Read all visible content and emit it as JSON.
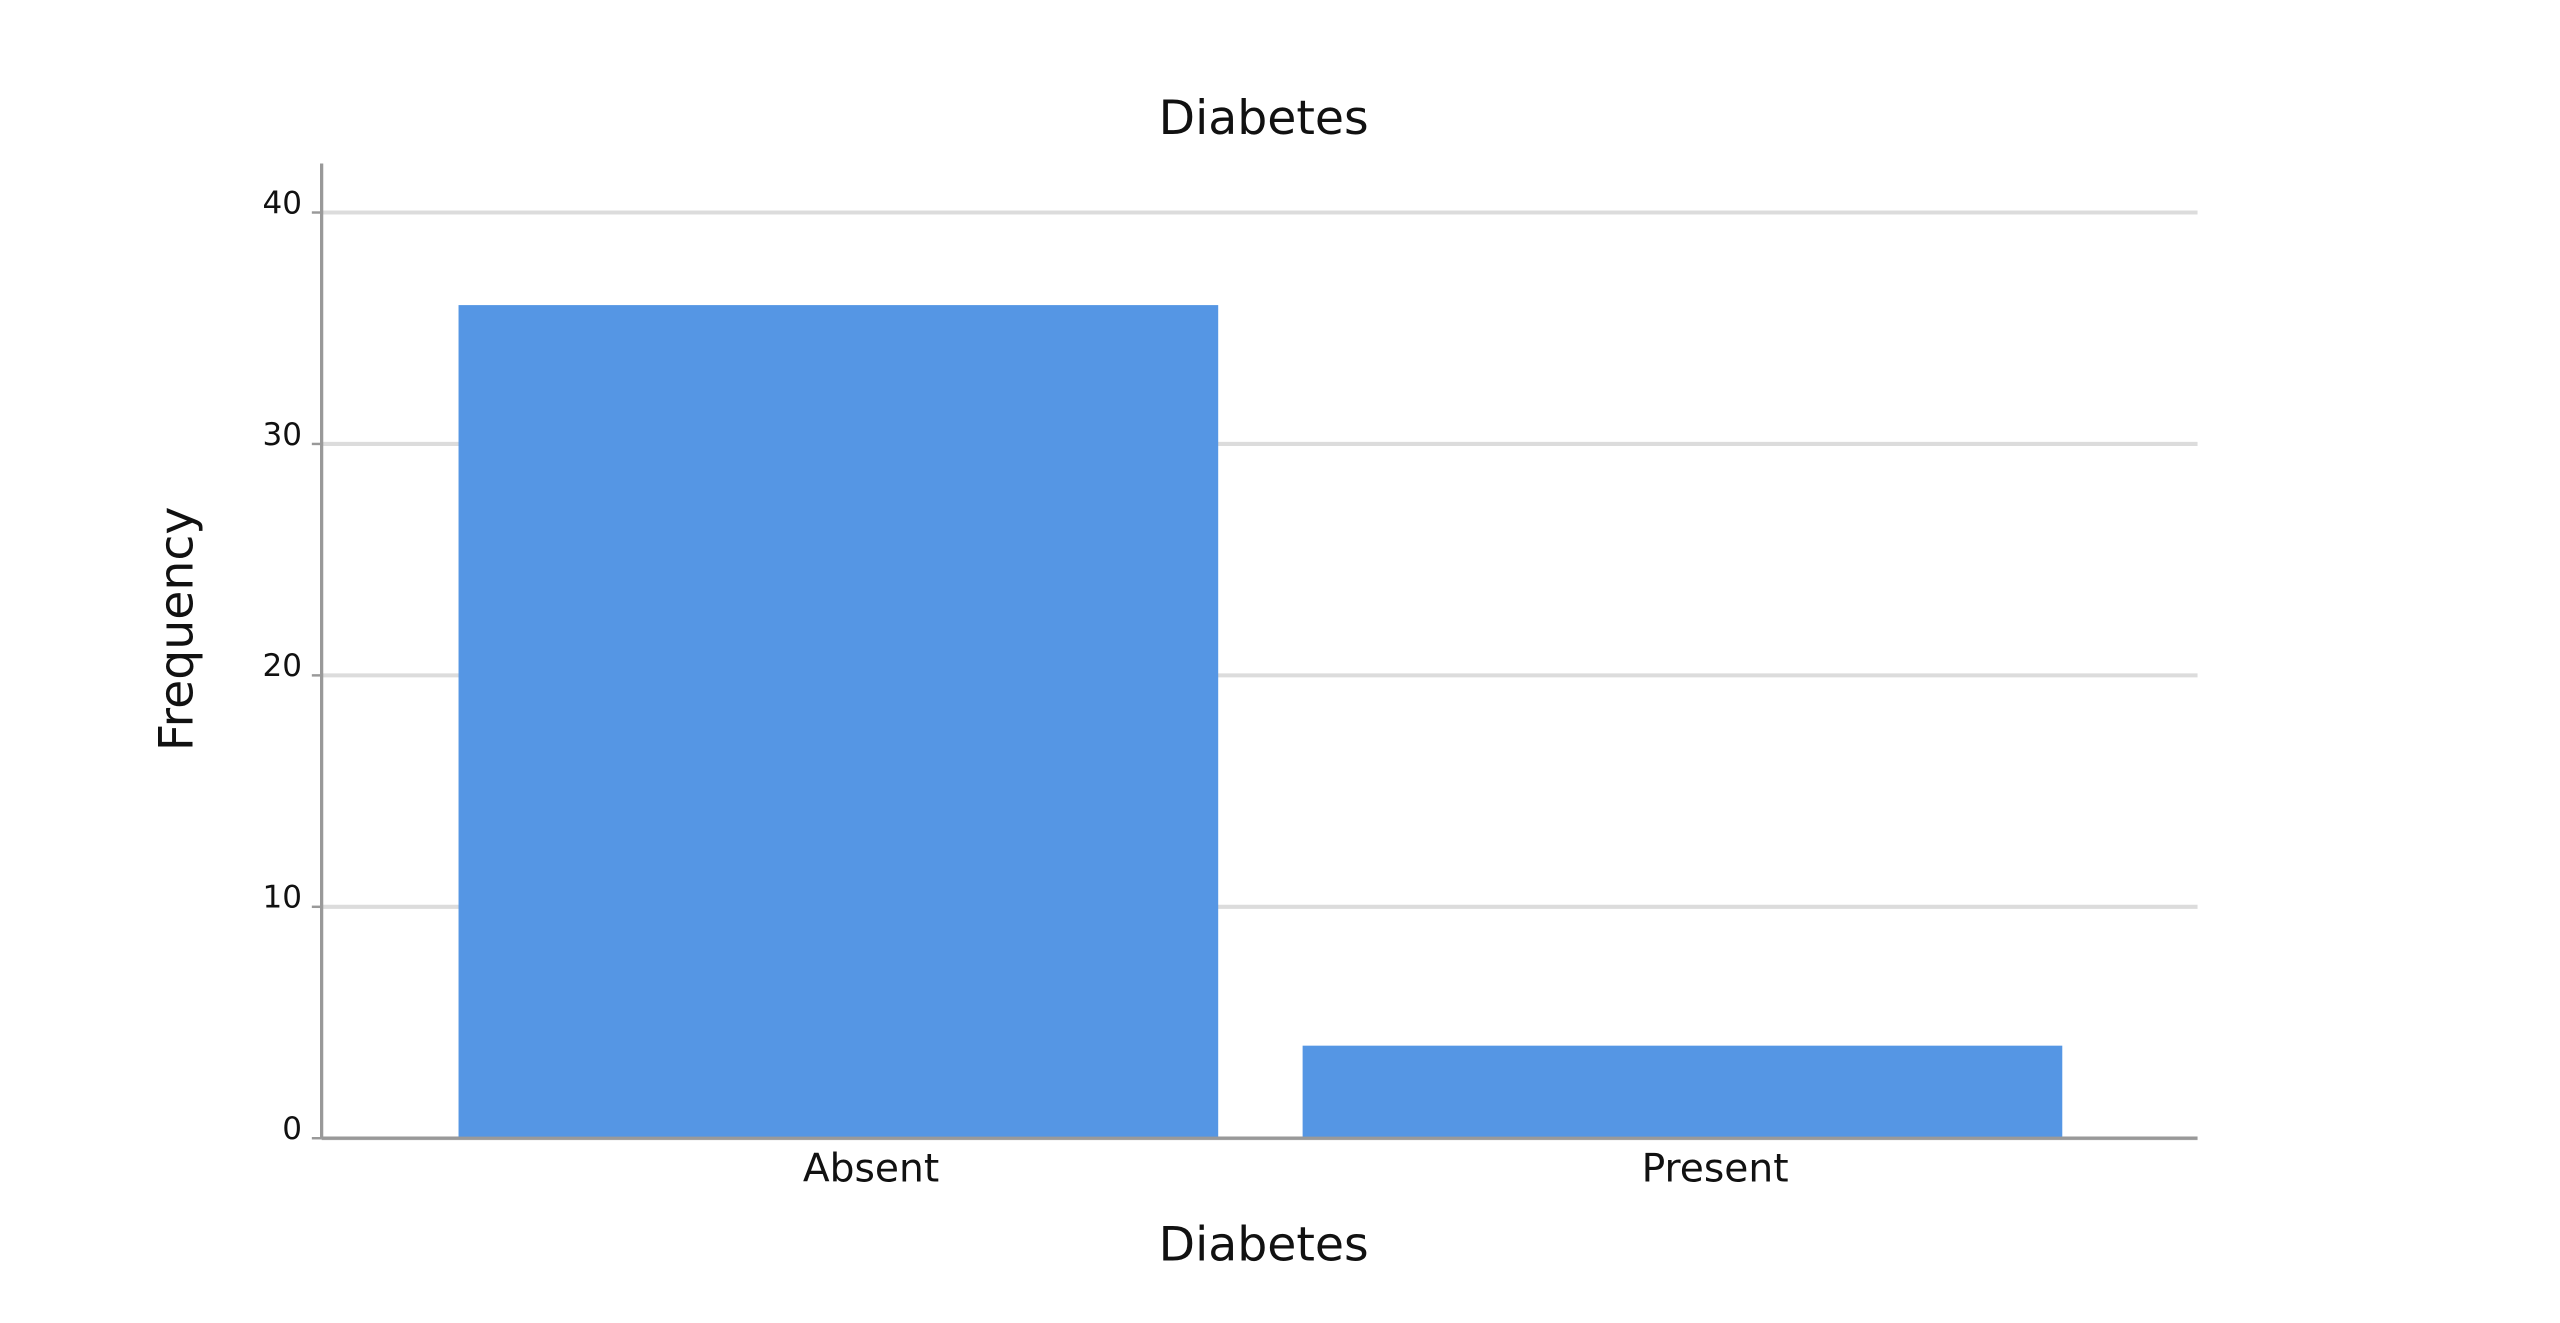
{
  "chart_data": {
    "type": "bar",
    "title": "Diabetes",
    "x_label": "Diabetes",
    "y_label": "Frequency",
    "categories": [
      "Absent",
      "Present"
    ],
    "values": [
      36,
      4
    ],
    "color": "#5596e4",
    "ylim": [
      0,
      40
    ],
    "yticks": [
      0,
      10,
      20,
      30,
      40
    ],
    "grid": true
  }
}
